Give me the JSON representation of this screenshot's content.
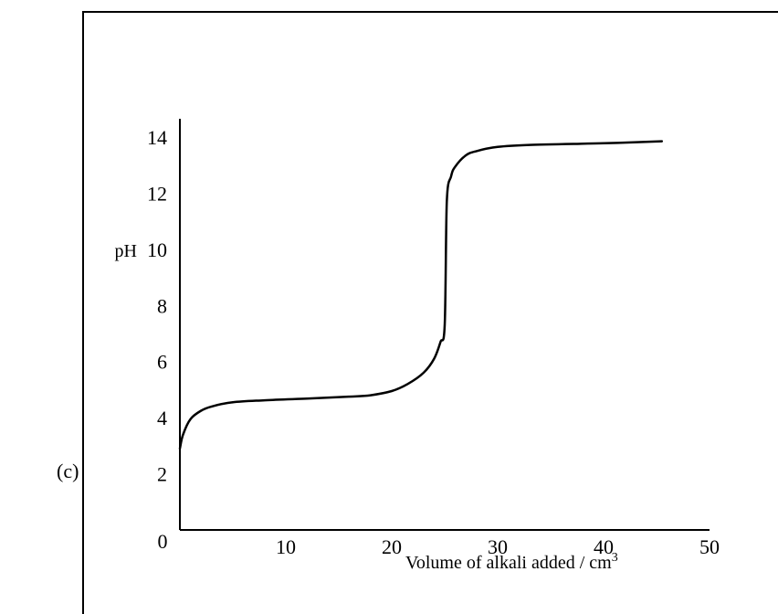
{
  "question": {
    "option_label": "(c)"
  },
  "chart_data": {
    "type": "line",
    "title": "",
    "xlabel": "Volume of alkali added / cm",
    "xlabel_superscript": "3",
    "ylabel": "pH",
    "xlim": [
      0,
      50
    ],
    "ylim": [
      0,
      14
    ],
    "x_ticks": [
      0,
      10,
      20,
      30,
      40,
      50
    ],
    "y_ticks": [
      2,
      4,
      6,
      8,
      10,
      12,
      14
    ],
    "grid": false,
    "legend": "none",
    "series": [
      {
        "x": [
          0,
          0.3,
          1,
          2,
          3,
          5,
          8,
          12,
          16,
          18,
          20,
          21.5,
          23,
          24,
          24.6,
          25,
          25.2,
          25.6,
          26,
          27,
          28,
          30,
          33,
          40,
          45.5
        ],
        "y": [
          2.9,
          3.4,
          3.95,
          4.25,
          4.4,
          4.55,
          4.62,
          4.68,
          4.75,
          4.8,
          4.95,
          5.2,
          5.6,
          6.1,
          6.7,
          7.3,
          11.7,
          12.6,
          12.95,
          13.35,
          13.5,
          13.65,
          13.72,
          13.78,
          13.85
        ]
      }
    ],
    "colors": {
      "line": "#000000",
      "axis": "#000000"
    }
  }
}
